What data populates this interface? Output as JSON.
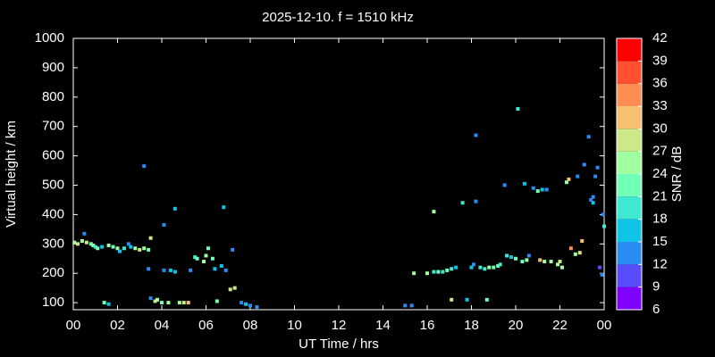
{
  "chart_data": {
    "type": "scatter",
    "title": "2025-12-10. f = 1510 kHz",
    "x_label": "UT Time / hrs",
    "y_label": "Virtual height / km",
    "xlim": [
      0,
      24
    ],
    "xticks": [
      {
        "value": 0,
        "label": "00"
      },
      {
        "value": 2,
        "label": "02"
      },
      {
        "value": 4,
        "label": "04"
      },
      {
        "value": 6,
        "label": "06"
      },
      {
        "value": 8,
        "label": "08"
      },
      10,
      12,
      14,
      16,
      18,
      20,
      22,
      {
        "value": 24,
        "label": "00"
      }
    ],
    "ylim": [
      76,
      1000
    ],
    "yticks": [
      100,
      200,
      300,
      400,
      500,
      600,
      700,
      800,
      900,
      1000
    ],
    "colorbar": {
      "label": "SNR / dB",
      "lim": [
        6,
        42
      ],
      "ticks": [
        6,
        9,
        12,
        15,
        18,
        21,
        24,
        27,
        30,
        33,
        36,
        39,
        42
      ],
      "colors": [
        "#8000ff",
        "#5a4cff",
        "#2a8cf5",
        "#10c4e8",
        "#3ee8d2",
        "#72ffb8",
        "#a0ffa0",
        "#cce888",
        "#f5c070",
        "#ff8c50",
        "#ff5030",
        "#ff0000"
      ]
    },
    "series": [
      {
        "x": [
          0.05,
          0.2,
          0.4,
          0.5,
          0.6,
          0.8,
          0.9,
          1.0,
          1.1,
          1.3,
          1.6,
          1.8,
          2.0,
          2.1,
          2.3,
          2.5,
          2.6,
          2.8,
          3.0,
          3.2,
          3.4,
          3.5,
          3.2,
          3.4,
          3.5,
          3.7,
          3.8,
          4.0,
          4.1,
          4.1,
          4.3,
          4.4,
          4.6,
          4.6,
          4.8,
          5.0,
          5.2,
          5.3,
          5.5,
          5.6,
          5.9,
          6.0,
          6.1,
          6.3,
          6.4,
          6.5,
          6.7,
          6.8,
          6.9,
          7.1,
          7.2,
          7.3,
          7.6,
          7.8,
          8.0,
          8.3,
          1.4,
          1.6,
          15.0,
          15.3,
          15.4,
          16.0,
          16.3,
          16.5,
          16.7,
          16.9,
          17.1,
          17.1,
          17.3,
          16.3,
          17.6,
          17.8,
          18.0,
          18.1,
          18.2,
          18.2,
          18.4,
          18.6,
          18.8,
          18.7,
          19.0,
          19.2,
          19.3,
          19.5,
          19.6,
          19.8,
          20.0,
          20.1,
          20.3,
          20.4,
          20.6,
          20.8,
          21.0,
          21.1,
          21.2,
          21.4,
          21.6,
          21.9,
          22.1,
          22.3,
          22.4,
          22.5,
          22.7,
          22.9,
          23.0,
          23.1,
          23.3,
          23.4,
          23.5,
          23.6,
          23.7,
          23.8,
          23.9,
          23.95,
          23.5,
          24.0,
          22.0,
          21.3,
          20.5,
          22.8
        ],
        "y": [
          305,
          300,
          310,
          335,
          305,
          300,
          295,
          290,
          285,
          290,
          295,
          290,
          285,
          275,
          285,
          300,
          290,
          285,
          280,
          285,
          280,
          320,
          565,
          215,
          115,
          105,
          110,
          100,
          210,
          365,
          100,
          210,
          420,
          205,
          100,
          100,
          100,
          210,
          255,
          250,
          240,
          260,
          285,
          250,
          215,
          105,
          225,
          425,
          210,
          145,
          280,
          150,
          100,
          95,
          90,
          85,
          100,
          95,
          90,
          90,
          200,
          200,
          205,
          205,
          205,
          210,
          215,
          110,
          220,
          410,
          440,
          110,
          220,
          230,
          445,
          670,
          220,
          215,
          220,
          110,
          220,
          225,
          230,
          500,
          260,
          255,
          250,
          760,
          240,
          505,
          260,
          490,
          480,
          245,
          485,
          485,
          240,
          230,
          220,
          510,
          520,
          285,
          265,
          270,
          310,
          570,
          665,
          450,
          460,
          530,
          560,
          220,
          195,
          400,
          440,
          360,
          240,
          240,
          245,
          530
        ],
        "snr": [
          24,
          27,
          24,
          12,
          27,
          21,
          24,
          18,
          21,
          15,
          24,
          21,
          24,
          15,
          18,
          12,
          15,
          24,
          27,
          24,
          21,
          27,
          12,
          12,
          12,
          27,
          24,
          21,
          12,
          12,
          24,
          15,
          15,
          15,
          24,
          27,
          30,
          12,
          18,
          21,
          24,
          24,
          21,
          21,
          15,
          21,
          15,
          15,
          12,
          27,
          12,
          27,
          12,
          15,
          12,
          12,
          21,
          15,
          12,
          12,
          24,
          24,
          18,
          21,
          18,
          21,
          18,
          27,
          15,
          24,
          18,
          15,
          15,
          12,
          12,
          12,
          18,
          18,
          24,
          21,
          21,
          21,
          18,
          12,
          18,
          15,
          21,
          18,
          21,
          15,
          12,
          12,
          21,
          30,
          15,
          12,
          24,
          24,
          24,
          24,
          30,
          33,
          24,
          27,
          30,
          12,
          12,
          12,
          12,
          12,
          12,
          9,
          12,
          12,
          15,
          18,
          27,
          24,
          24,
          12
        ]
      }
    ]
  }
}
